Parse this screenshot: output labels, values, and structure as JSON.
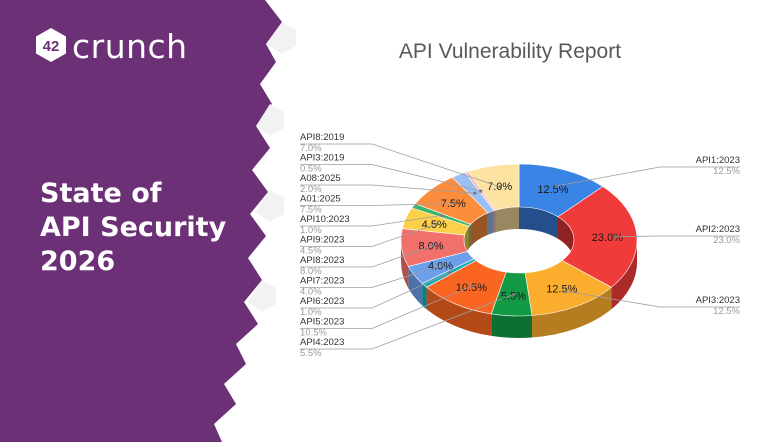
{
  "brand": {
    "logo_mark": "42",
    "logo_text": "crunch"
  },
  "headline": {
    "line1": "State of",
    "line2": "API Security",
    "line3": "2026"
  },
  "colors": {
    "purple": "#6b3075",
    "white": "#ffffff"
  },
  "chart_data": {
    "type": "pie",
    "style": "3d-donut",
    "title": "API Vulnerability Report",
    "slices": [
      {
        "label": "API1:2023",
        "value": 12.5,
        "display": "12.5%",
        "color": "#3a84e6"
      },
      {
        "label": "API2:2023",
        "value": 23.0,
        "display": "23.0%",
        "color": "#ef3b39"
      },
      {
        "label": "API3:2023",
        "value": 12.5,
        "display": "12.5%",
        "color": "#fbae2d"
      },
      {
        "label": "API4:2023",
        "value": 5.5,
        "display": "5.5%",
        "color": "#139a45"
      },
      {
        "label": "API5:2023",
        "value": 10.5,
        "display": "10.5%",
        "color": "#fa6522"
      },
      {
        "label": "API6:2023",
        "value": 1.0,
        "display": "1.0%",
        "color": "#1aaab5"
      },
      {
        "label": "API7:2023",
        "value": 4.0,
        "display": "4.0%",
        "color": "#6b9eeb"
      },
      {
        "label": "API8:2023",
        "value": 8.0,
        "display": "8.0%",
        "color": "#f2706c"
      },
      {
        "label": "API9:2023",
        "value": 4.5,
        "display": "4.5%",
        "color": "#fcd04a"
      },
      {
        "label": "API10:2023",
        "value": 1.0,
        "display": "1.0%",
        "color": "#3fb46b"
      },
      {
        "label": "A01:2025",
        "value": 7.5,
        "display": "7.5%",
        "color": "#fb8d3d"
      },
      {
        "label": "A08:2025",
        "value": 2.0,
        "display": "2.0%",
        "color": "#9abff4"
      },
      {
        "label": "API3:2019",
        "value": 0.5,
        "display": "0.5%",
        "color": "#fbbcb6"
      },
      {
        "label": "API8:2019",
        "value": 7.0,
        "display": "7.0%",
        "color": "#fde3a1"
      }
    ]
  }
}
